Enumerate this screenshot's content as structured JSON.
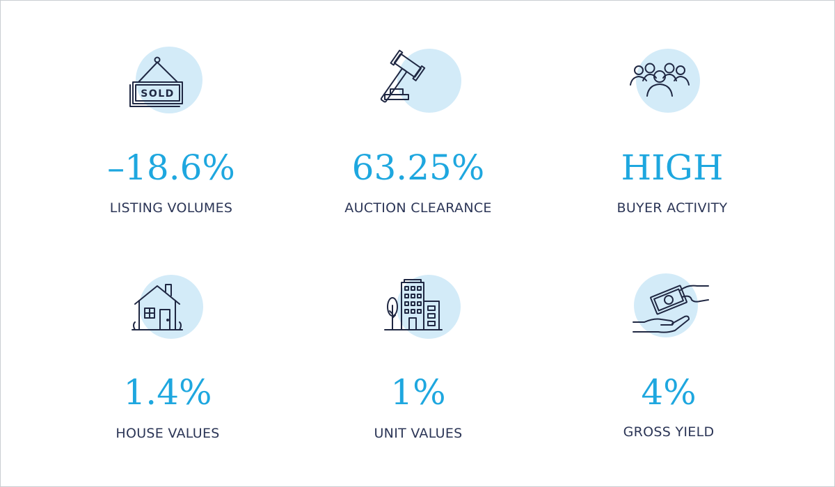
{
  "stats": [
    {
      "value": "–18.6%",
      "label": "LISTING VOLUMES",
      "icon": "sold-sign-icon"
    },
    {
      "value": "63.25%",
      "label": "AUCTION CLEARANCE",
      "icon": "gavel-icon"
    },
    {
      "value": "HIGH",
      "label": "BUYER ACTIVITY",
      "icon": "crowd-icon"
    },
    {
      "value": "1.4%",
      "label": "HOUSE VALUES",
      "icon": "house-icon"
    },
    {
      "value": "1%",
      "label": "UNIT VALUES",
      "icon": "apartment-building-icon"
    },
    {
      "value": "4%",
      "label": "GROSS YIELD",
      "icon": "cash-payment-icon"
    }
  ],
  "sold_sign": {
    "text": "SOLD"
  },
  "colors": {
    "accent": "#1ea7df",
    "label": "#2b3556",
    "icon_stroke": "#1f2742",
    "circle": "#d3ebf8"
  }
}
